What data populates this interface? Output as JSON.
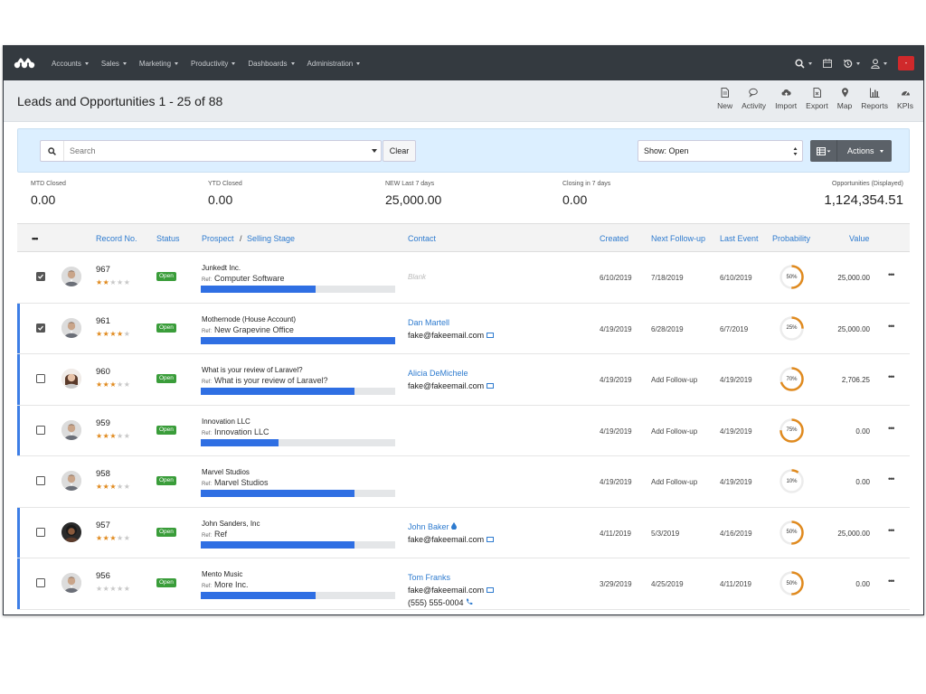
{
  "nav": {
    "items": [
      "Accounts",
      "Sales",
      "Marketing",
      "Productivity",
      "Dashboards",
      "Administration"
    ],
    "red_button": "-"
  },
  "header": {
    "title": "Leads and Opportunities 1 - 25 of 88",
    "toolbar": [
      "New",
      "Activity",
      "Import",
      "Export",
      "Map",
      "Reports",
      "KPIs"
    ]
  },
  "search": {
    "placeholder": "Search",
    "clear_label": "Clear",
    "show_value": "Show: Open",
    "actions_label": "Actions"
  },
  "stats": [
    {
      "label": "MTD Closed",
      "value": "0.00"
    },
    {
      "label": "YTD Closed",
      "value": "0.00"
    },
    {
      "label": "NEW Last 7 days",
      "value": "25,000.00"
    },
    {
      "label": "Closing in 7 days",
      "value": "0.00"
    },
    {
      "label": "Opportunities (Displayed)",
      "value": "1,124,354.51"
    }
  ],
  "table": {
    "more_header": "•••",
    "headers": [
      "Record No.",
      "Status",
      "Prospect",
      "/",
      "Selling Stage",
      "Contact",
      "Created",
      "Next Follow-up",
      "Last Event",
      "Probability",
      "Value"
    ],
    "rows": [
      {
        "rec": "967",
        "stars": 2,
        "status": "Open",
        "prospect": "Junkedt Inc.",
        "ref_label": "Ref:",
        "ref": "Computer Software",
        "stage": 0.59,
        "contact_name": "",
        "contact_email": "",
        "contact_phone": "",
        "blank": "Blank",
        "created": "6/10/2019",
        "next": "7/18/2019",
        "last": "6/10/2019",
        "prob": 50,
        "prob_label": "50%",
        "value": "25,000.00",
        "checked": true,
        "accent": false,
        "avatar": "light"
      },
      {
        "rec": "961",
        "stars": 4,
        "status": "Open",
        "prospect": "Mothernode (House Account)",
        "ref_label": "Ref:",
        "ref": "New Grapevine Office",
        "stage": 1.0,
        "contact_name": "Dan Martell",
        "contact_email": "fake@fakeemail.com",
        "contact_phone": "",
        "blank": "",
        "created": "4/19/2019",
        "next": "6/28/2019",
        "last": "6/7/2019",
        "prob": 25,
        "prob_label": "25%",
        "value": "25,000.00",
        "checked": true,
        "accent": true,
        "avatar": "light"
      },
      {
        "rec": "960",
        "stars": 3,
        "status": "Open",
        "prospect": "What is your review of Laravel?",
        "ref_label": "Ref:",
        "ref": "What is your review of Laravel?",
        "stage": 0.79,
        "contact_name": "Alicia DeMichele",
        "contact_email": "fake@fakeemail.com",
        "contact_phone": "",
        "blank": "",
        "created": "4/19/2019",
        "next": "Add Follow-up",
        "last": "4/19/2019",
        "prob": 70,
        "prob_label": "70%",
        "value": "2,706.25",
        "checked": false,
        "accent": true,
        "avatar": "woman"
      },
      {
        "rec": "959",
        "stars": 3,
        "status": "Open",
        "prospect": "Innovation LLC",
        "ref_label": "Ref:",
        "ref": "Innovation LLC",
        "stage": 0.4,
        "contact_name": "",
        "contact_email": "",
        "contact_phone": "",
        "blank": "",
        "created": "4/19/2019",
        "next": "Add Follow-up",
        "last": "4/19/2019",
        "prob": 75,
        "prob_label": "75%",
        "value": "0.00",
        "checked": false,
        "accent": true,
        "avatar": "light"
      },
      {
        "rec": "958",
        "stars": 3,
        "status": "Open",
        "prospect": "Marvel Studios",
        "ref_label": "Ref:",
        "ref": "Marvel Studios",
        "stage": 0.79,
        "contact_name": "",
        "contact_email": "",
        "contact_phone": "",
        "blank": "",
        "created": "4/19/2019",
        "next": "Add Follow-up",
        "last": "4/19/2019",
        "prob": 10,
        "prob_label": "10%",
        "value": "0.00",
        "checked": false,
        "accent": false,
        "avatar": "light"
      },
      {
        "rec": "957",
        "stars": 3,
        "status": "Open",
        "prospect": "John Sanders, Inc",
        "ref_label": "Ref:",
        "ref": "Ref",
        "stage": 0.79,
        "contact_name": "John Baker",
        "contact_email": "fake@fakeemail.com",
        "contact_phone": "",
        "blank": "",
        "created": "4/11/2019",
        "next": "5/3/2019",
        "last": "4/16/2019",
        "prob": 50,
        "prob_label": "50%",
        "value": "25,000.00",
        "checked": false,
        "accent": true,
        "avatar": "dark"
      },
      {
        "rec": "956",
        "stars": 0,
        "status": "Open",
        "prospect": "Mento Music",
        "ref_label": "Ref:",
        "ref": "More Inc.",
        "stage": 0.59,
        "contact_name": "Tom Franks",
        "contact_email": "fake@fakeemail.com",
        "contact_phone": "(555) 555-0004",
        "blank": "",
        "created": "3/29/2019",
        "next": "4/25/2019",
        "last": "4/11/2019",
        "prob": 50,
        "prob_label": "50%",
        "value": "0.00",
        "checked": false,
        "accent": true,
        "avatar": "light"
      }
    ]
  },
  "colors": {
    "accent": "#2f6fe3",
    "link": "#2e7bcf",
    "badge": "#3a9d3a",
    "probability": "#e08a1e",
    "navbar": "#343a40"
  }
}
